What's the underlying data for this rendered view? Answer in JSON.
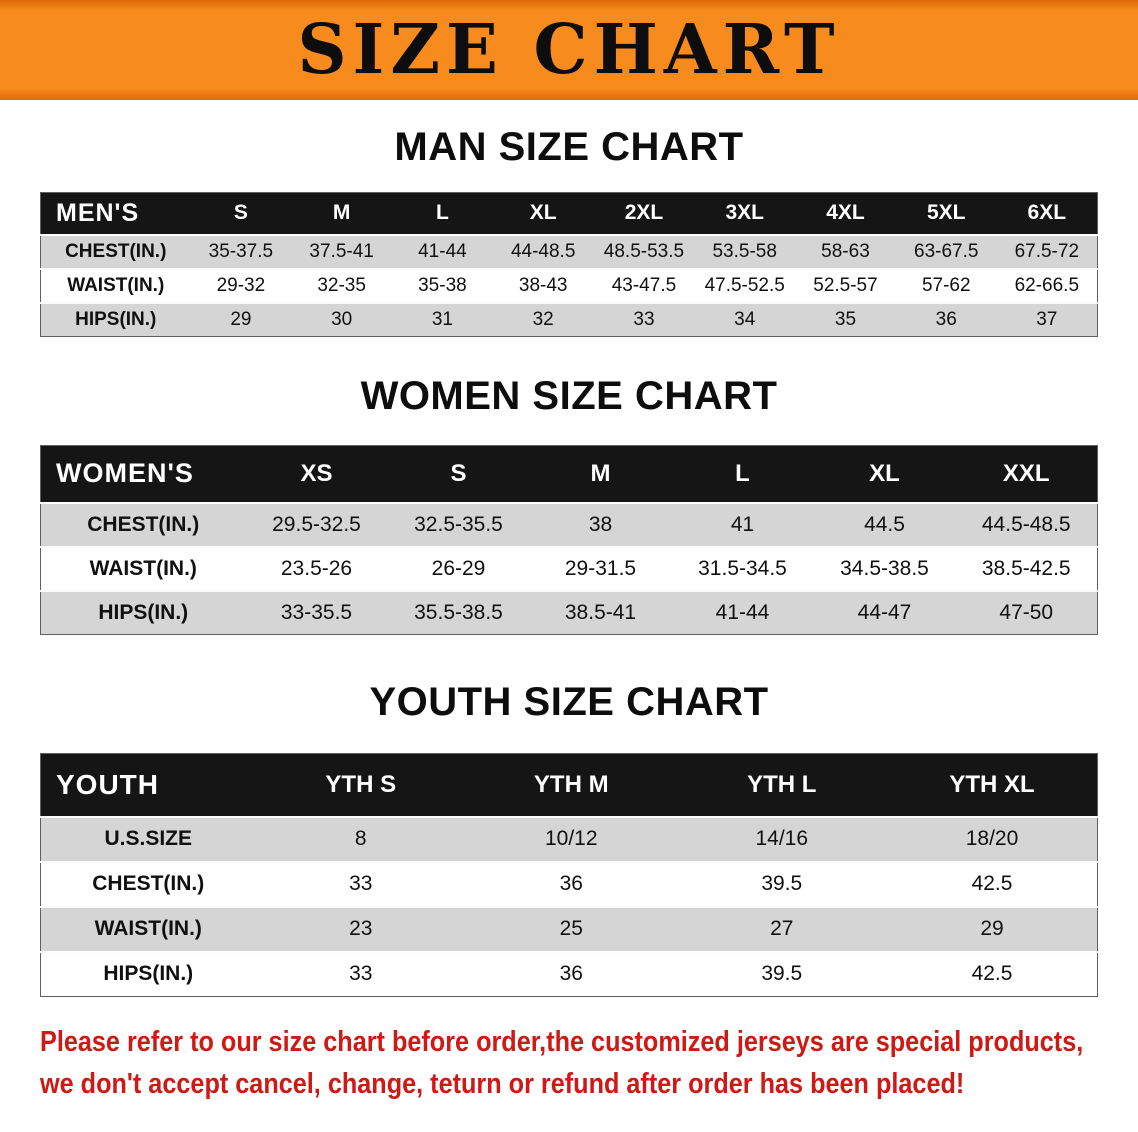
{
  "banner": {
    "title": "SIZE CHART"
  },
  "colors": {
    "banner_bg": "#f78b1e",
    "banner_edge": "#de6a05",
    "header_bg": "#151515",
    "header_text": "#ffffff",
    "row_stripe": "#d5d5d5",
    "footer_text": "#cd1a15"
  },
  "sections": {
    "men": {
      "heading": "MAN SIZE CHART",
      "table": {
        "header": [
          "MEN'S",
          "S",
          "M",
          "L",
          "XL",
          "2XL",
          "3XL",
          "4XL",
          "5XL",
          "6XL"
        ],
        "rows": [
          [
            "CHEST(IN.)",
            "35-37.5",
            "37.5-41",
            "41-44",
            "44-48.5",
            "48.5-53.5",
            "53.5-58",
            "58-63",
            "63-67.5",
            "67.5-72"
          ],
          [
            "WAIST(IN.)",
            "29-32",
            "32-35",
            "35-38",
            "38-43",
            "43-47.5",
            "47.5-52.5",
            "52.5-57",
            "57-62",
            "62-66.5"
          ],
          [
            "HIPS(IN.)",
            "29",
            "30",
            "31",
            "32",
            "33",
            "34",
            "35",
            "36",
            "37"
          ]
        ]
      }
    },
    "women": {
      "heading": "WOMEN SIZE CHART",
      "table": {
        "header": [
          "WOMEN'S",
          "XS",
          "S",
          "M",
          "L",
          "XL",
          "XXL"
        ],
        "rows": [
          [
            "CHEST(IN.)",
            "29.5-32.5",
            "32.5-35.5",
            "38",
            "41",
            "44.5",
            "44.5-48.5"
          ],
          [
            "WAIST(IN.)",
            "23.5-26",
            "26-29",
            "29-31.5",
            "31.5-34.5",
            "34.5-38.5",
            "38.5-42.5"
          ],
          [
            "HIPS(IN.)",
            "33-35.5",
            "35.5-38.5",
            "38.5-41",
            "41-44",
            "44-47",
            "47-50"
          ]
        ]
      }
    },
    "youth": {
      "heading": "YOUTH SIZE CHART",
      "table": {
        "header": [
          "YOUTH",
          "YTH S",
          "YTH M",
          "YTH L",
          "YTH XL"
        ],
        "rows": [
          [
            "U.S.SIZE",
            "8",
            "10/12",
            "14/16",
            "18/20"
          ],
          [
            "CHEST(IN.)",
            "33",
            "36",
            "39.5",
            "42.5"
          ],
          [
            "WAIST(IN.)",
            "23",
            "25",
            "27",
            "29"
          ],
          [
            "HIPS(IN.)",
            "33",
            "36",
            "39.5",
            "42.5"
          ]
        ]
      }
    }
  },
  "footer": {
    "line1": "Please refer to our size chart before order,the customized jerseys are special products,",
    "line2": "we don't accept cancel, change, teturn or refund after order has been placed!"
  }
}
